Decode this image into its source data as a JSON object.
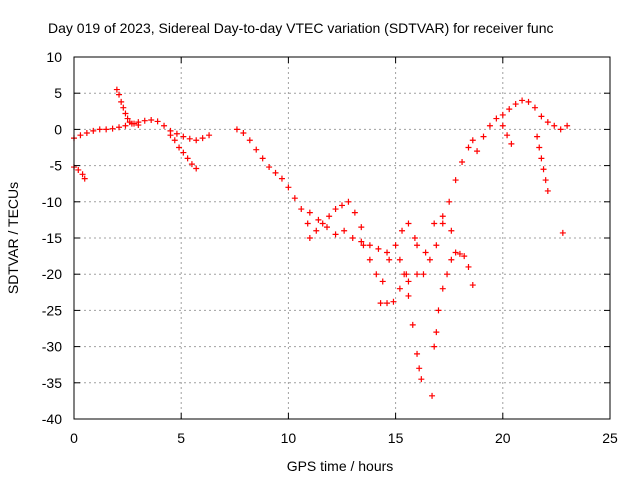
{
  "chart_data": {
    "type": "scatter",
    "title": "Day 019 of 2023, Sidereal Day-to-day VTEC variation (SDTVAR) for receiver func",
    "xlabel": "GPS time / hours",
    "ylabel": "SDTVAR / TECUs",
    "xlim": [
      0,
      25
    ],
    "ylim": [
      -40,
      10
    ],
    "xticks": [
      0,
      5,
      10,
      15,
      20,
      25
    ],
    "yticks": [
      10,
      5,
      0,
      -5,
      -10,
      -15,
      -20,
      -25,
      -30,
      -35,
      -40
    ],
    "grid": true,
    "marker": "+",
    "color": "#ff0000",
    "series": [
      {
        "name": "segment-1",
        "x": [
          0.0,
          0.3,
          0.6,
          0.9,
          1.2,
          1.5,
          1.8,
          2.1,
          2.4,
          2.7,
          3.0,
          3.3,
          3.6,
          3.9,
          4.2,
          4.5,
          4.8,
          5.1,
          5.4,
          5.7,
          6.0,
          6.3
        ],
        "y": [
          -1.2,
          -0.8,
          -0.5,
          -0.2,
          0.0,
          0.0,
          0.1,
          0.3,
          0.5,
          0.8,
          1.0,
          1.2,
          1.3,
          1.1,
          0.5,
          -0.2,
          -0.6,
          -1.0,
          -1.3,
          -1.5,
          -1.2,
          -0.8
        ]
      },
      {
        "name": "segment-2",
        "x": [
          0.0,
          0.2,
          0.4,
          0.5
        ],
        "y": [
          -5.2,
          -5.6,
          -6.2,
          -6.8
        ]
      },
      {
        "name": "segment-3",
        "x": [
          2.0,
          2.1,
          2.2,
          2.3,
          2.4,
          2.5,
          2.6,
          2.8,
          3.0
        ],
        "y": [
          5.5,
          4.8,
          3.8,
          3.0,
          2.2,
          1.5,
          1.0,
          0.8,
          0.6
        ]
      },
      {
        "name": "segment-4",
        "x": [
          4.5,
          4.7,
          4.9,
          5.1,
          5.3,
          5.5,
          5.7
        ],
        "y": [
          -0.8,
          -1.5,
          -2.5,
          -3.2,
          -4.0,
          -4.8,
          -5.4
        ]
      },
      {
        "name": "segment-5",
        "x": [
          7.6,
          7.9,
          8.2,
          8.5,
          8.8,
          9.1,
          9.4,
          9.7,
          10.0,
          10.3,
          10.6,
          10.9
        ],
        "y": [
          0.0,
          -0.5,
          -1.5,
          -2.8,
          -4.0,
          -5.2,
          -6.0,
          -6.8,
          -8.0,
          -9.5,
          -11.0,
          -13.0
        ]
      },
      {
        "name": "segment-6",
        "x": [
          11.0,
          11.3,
          11.6,
          11.9,
          12.2,
          12.5,
          12.8,
          13.1,
          13.4
        ],
        "y": [
          -15.0,
          -14.0,
          -13.0,
          -12.0,
          -11.0,
          -10.5,
          -10.0,
          -11.5,
          -13.5
        ]
      },
      {
        "name": "segment-7",
        "x": [
          11.0,
          11.4,
          11.8,
          12.2,
          12.6,
          13.0,
          13.4,
          13.8,
          14.2,
          14.6
        ],
        "y": [
          -11.5,
          -12.5,
          -13.5,
          -14.5,
          -14.0,
          -15.0,
          -15.5,
          -16.0,
          -16.5,
          -17.0
        ]
      },
      {
        "name": "segment-8",
        "x": [
          13.5,
          13.8,
          14.1,
          14.4,
          14.7,
          15.0,
          15.3,
          15.6,
          15.9,
          16.0
        ],
        "y": [
          -16.0,
          -18.0,
          -20.0,
          -21.0,
          -18.0,
          -16.0,
          -14.0,
          -13.0,
          -15.0,
          -16.0
        ]
      },
      {
        "name": "segment-9",
        "x": [
          14.3,
          14.6,
          14.9,
          15.2,
          15.5
        ],
        "y": [
          -24.0,
          -24.0,
          -23.8,
          -22.0,
          -20.0
        ]
      },
      {
        "name": "segment-10",
        "x": [
          15.2,
          15.4,
          15.6,
          15.8,
          16.0,
          16.1,
          16.2
        ],
        "y": [
          -18.0,
          -20.0,
          -23.0,
          -27.0,
          -31.0,
          -33.0,
          -34.5
        ]
      },
      {
        "name": "segment-11",
        "x": [
          16.3,
          16.6,
          16.9,
          17.2,
          17.5,
          17.8,
          18.1,
          18.4,
          18.6
        ],
        "y": [
          -20.0,
          -18.0,
          -16.0,
          -13.0,
          -10.0,
          -7.0,
          -4.5,
          -2.5,
          -1.5
        ]
      },
      {
        "name": "segment-12",
        "x": [
          16.8,
          16.9,
          17.0,
          17.2,
          17.4,
          17.6,
          17.8,
          18.0,
          18.2,
          18.4,
          18.6
        ],
        "y": [
          -30.0,
          -28.0,
          -25.0,
          -22.0,
          -20.0,
          -18.0,
          -17.0,
          -17.2,
          -17.5,
          -19.0,
          -21.5
        ]
      },
      {
        "name": "segment-13",
        "x": [
          15.6,
          16.0,
          16.4,
          16.8,
          17.2,
          17.6
        ],
        "y": [
          -21.0,
          -20.0,
          -17.0,
          -13.0,
          -12.0,
          -14.0
        ]
      },
      {
        "name": "segment-14",
        "x": [
          18.8,
          19.1,
          19.4,
          19.7,
          20.0,
          20.3,
          20.6,
          20.9,
          21.2,
          21.5,
          21.8,
          22.1,
          22.4,
          22.7,
          23.0
        ],
        "y": [
          -3.0,
          -1.0,
          0.5,
          1.5,
          2.0,
          2.8,
          3.5,
          4.0,
          3.8,
          3.0,
          1.8,
          1.0,
          0.5,
          0.0,
          0.5
        ]
      },
      {
        "name": "segment-15",
        "x": [
          20.0,
          20.2,
          20.4
        ],
        "y": [
          0.5,
          -0.8,
          -2.0
        ]
      },
      {
        "name": "segment-16",
        "x": [
          21.6,
          21.7,
          21.8,
          21.9,
          22.0,
          22.1
        ],
        "y": [
          -1.0,
          -2.5,
          -4.0,
          -5.5,
          -7.0,
          -8.5
        ]
      },
      {
        "name": "segment-17",
        "x": [
          16.7
        ],
        "y": [
          -36.8
        ]
      },
      {
        "name": "segment-18",
        "x": [
          22.8
        ],
        "y": [
          -14.3
        ]
      }
    ]
  }
}
